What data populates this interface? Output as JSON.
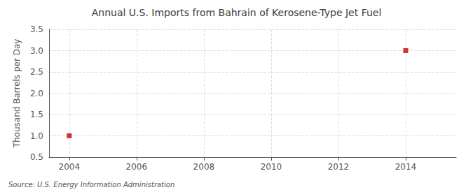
{
  "chart_data": {
    "type": "scatter",
    "title": "Annual U.S. Imports from Bahrain of Kerosene-Type Jet Fuel",
    "ylabel": "Thousand Barrels per Day",
    "annotations": [
      "Source: U.S. Energy Information Administration"
    ],
    "x": [
      2004,
      2014
    ],
    "values": [
      1.0,
      3.0
    ],
    "color": "#cc0000",
    "marker": "square",
    "xlim": [
      2003.4,
      2015.5
    ],
    "xticks": [
      2004,
      2006,
      2008,
      2010,
      2012,
      2014
    ],
    "ylim": [
      0.5,
      3.5
    ],
    "yticks": [
      0.5,
      {
        "value": 1,
        "label": "1.0"
      },
      1.5,
      {
        "value": 2,
        "label": "2.0"
      },
      2.5,
      {
        "value": 3,
        "label": "3.0"
      },
      3.5
    ],
    "grid": true
  }
}
